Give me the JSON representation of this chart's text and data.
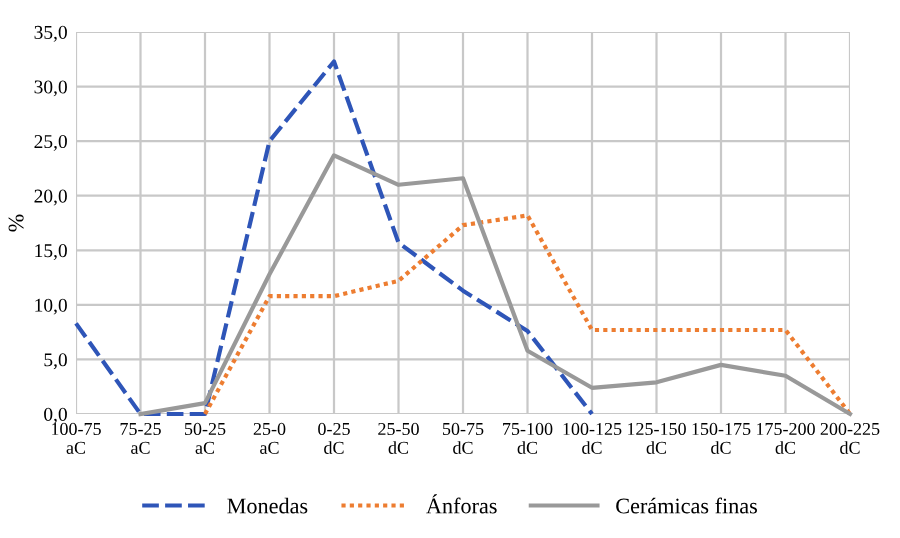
{
  "chart_data": {
    "type": "line",
    "ylabel": "%",
    "categories": [
      "100-75 aC",
      "75-25 aC",
      "50-25 aC",
      "25-0 aC",
      "0-25 dC",
      "25-50 dC",
      "50-75 dC",
      "75-100 dC",
      "100-125 dC",
      "125-150 dC",
      "150-175 dC",
      "175-200 dC",
      "200-225 dC"
    ],
    "series": [
      {
        "name": "Monedas",
        "color": "#2e55b8",
        "line_style": "dashed",
        "values": [
          8.3,
          0,
          0,
          25.0,
          32.3,
          15.7,
          11.3,
          7.6,
          0,
          null,
          null,
          null,
          null
        ]
      },
      {
        "name": "Ánforas",
        "color": "#ed7d31",
        "line_style": "dotted",
        "values": [
          null,
          null,
          0,
          10.8,
          10.8,
          12.2,
          17.3,
          18.2,
          7.7,
          7.7,
          7.7,
          7.7,
          0
        ]
      },
      {
        "name": "Cerámicas finas",
        "color": "#999999",
        "line_style": "solid",
        "values": [
          null,
          0,
          1.0,
          12.8,
          23.7,
          21.0,
          21.6,
          5.8,
          2.4,
          2.9,
          4.5,
          3.5,
          0
        ]
      }
    ],
    "ylim": [
      0,
      35
    ],
    "yticks": [
      {
        "value": 0,
        "label": "0,0"
      },
      {
        "value": 5,
        "label": "5,0"
      },
      {
        "value": 10,
        "label": "10,0"
      },
      {
        "value": 15,
        "label": "15,0"
      },
      {
        "value": 20,
        "label": "20,0"
      },
      {
        "value": 25,
        "label": "25,0"
      },
      {
        "value": 30,
        "label": "30,0"
      },
      {
        "value": 35,
        "label": "35,0"
      }
    ],
    "grid": true,
    "legend": "bottom",
    "marker": "none"
  }
}
